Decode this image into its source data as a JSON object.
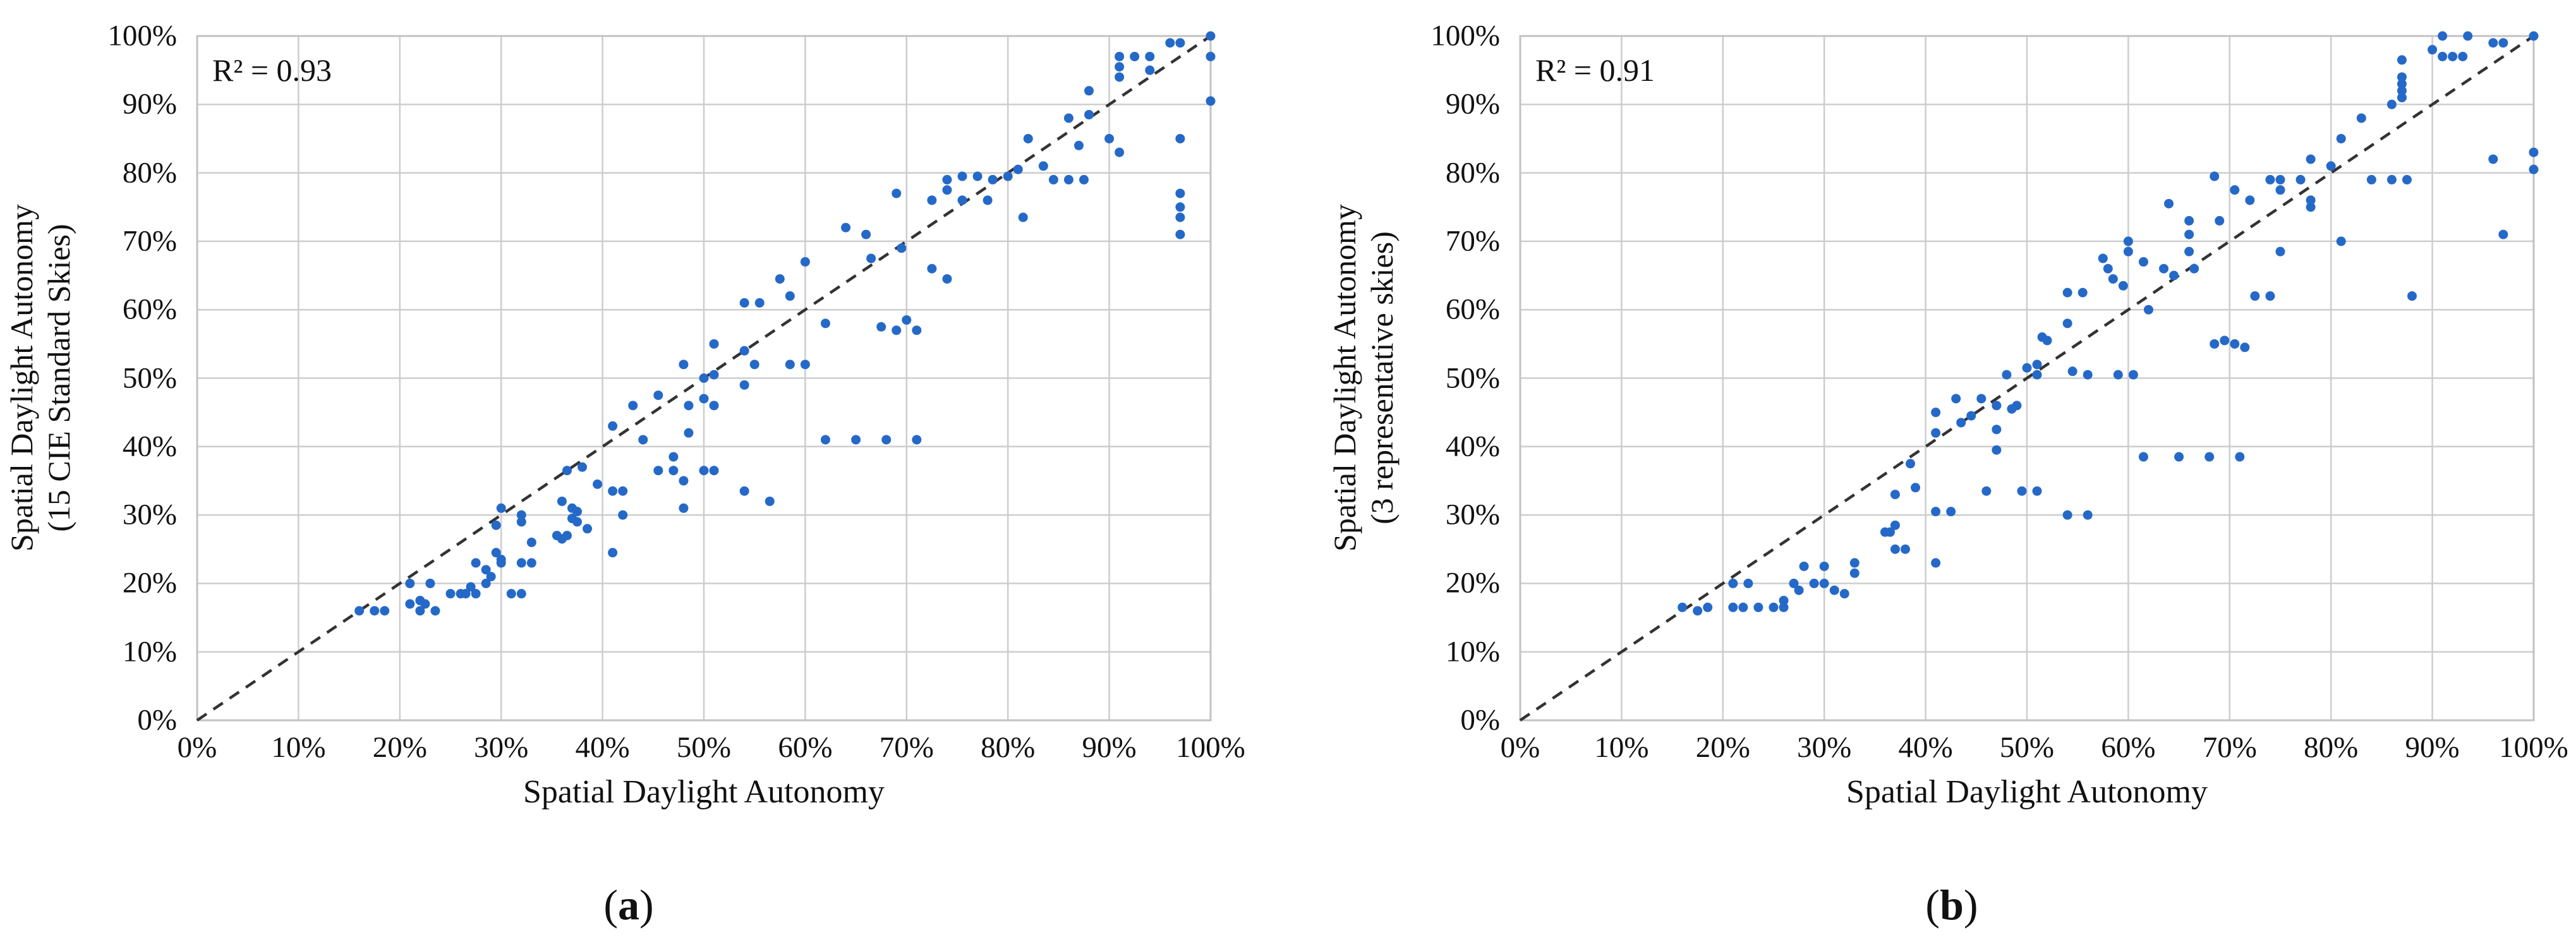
{
  "figure": {
    "captions": [
      "a",
      "b"
    ]
  },
  "colors": {
    "point": "#2569C8",
    "grid": "#CDCDCD",
    "border": "#C2C2C2",
    "diagonal": "#333333",
    "text": "#111111"
  },
  "chart_data": [
    {
      "type": "scatter",
      "r2_label": "R² = 0.93",
      "xlabel": "Spatial Daylight Autonomy",
      "ylabel_line1": "Spatial Daylight Autonomy",
      "ylabel_line2": "(15 CIE Standard Skies)",
      "xlim": [
        0,
        100
      ],
      "ylim": [
        0,
        100
      ],
      "grid_step": 10,
      "grid": true,
      "reference_line": "y = x (dashed)",
      "x_ticks": [
        "0%",
        "10%",
        "20%",
        "30%",
        "40%",
        "50%",
        "60%",
        "70%",
        "80%",
        "90%",
        "100%"
      ],
      "y_ticks": [
        "0%",
        "10%",
        "20%",
        "30%",
        "40%",
        "50%",
        "60%",
        "70%",
        "80%",
        "90%",
        "100%"
      ],
      "points": [
        [
          16,
          16
        ],
        [
          17.5,
          16
        ],
        [
          18.5,
          16
        ],
        [
          21,
          17
        ],
        [
          21,
          20
        ],
        [
          22,
          16
        ],
        [
          22,
          17.5
        ],
        [
          22.5,
          17
        ],
        [
          23,
          20
        ],
        [
          23.5,
          16
        ],
        [
          25,
          18.5
        ],
        [
          26,
          18.5
        ],
        [
          26.5,
          18.5
        ],
        [
          27,
          19.5
        ],
        [
          27.5,
          18.5
        ],
        [
          27.5,
          23
        ],
        [
          28.5,
          20
        ],
        [
          28.5,
          22
        ],
        [
          29,
          21
        ],
        [
          29.5,
          24.5
        ],
        [
          29.5,
          28.5
        ],
        [
          30,
          23
        ],
        [
          30,
          23.5
        ],
        [
          30,
          31
        ],
        [
          31,
          18.5
        ],
        [
          32,
          18.5
        ],
        [
          32,
          23
        ],
        [
          32,
          29
        ],
        [
          32,
          30
        ],
        [
          33,
          23
        ],
        [
          33,
          26
        ],
        [
          35.5,
          27
        ],
        [
          36,
          26.5
        ],
        [
          36,
          32
        ],
        [
          36.5,
          27
        ],
        [
          36.5,
          36.5
        ],
        [
          37,
          29.5
        ],
        [
          37,
          31
        ],
        [
          37.5,
          29
        ],
        [
          37.5,
          30.5
        ],
        [
          38,
          37
        ],
        [
          38.5,
          28
        ],
        [
          39.5,
          34.5
        ],
        [
          41,
          24.5
        ],
        [
          41,
          33.5
        ],
        [
          41,
          43
        ],
        [
          42,
          30
        ],
        [
          42,
          33.5
        ],
        [
          43,
          46
        ],
        [
          44,
          41
        ],
        [
          45.5,
          36.5
        ],
        [
          45.5,
          47.5
        ],
        [
          47,
          36.5
        ],
        [
          47,
          38.5
        ],
        [
          48,
          31
        ],
        [
          48,
          35
        ],
        [
          48,
          52
        ],
        [
          48.5,
          42
        ],
        [
          48.5,
          46
        ],
        [
          50,
          36.5
        ],
        [
          51,
          36.5
        ],
        [
          54,
          33.5
        ],
        [
          56.5,
          32
        ],
        [
          62,
          41
        ],
        [
          65,
          41
        ],
        [
          68,
          41
        ],
        [
          71,
          41
        ],
        [
          50,
          47
        ],
        [
          50,
          50
        ],
        [
          51,
          46
        ],
        [
          51,
          50.5
        ],
        [
          51,
          55
        ],
        [
          54,
          49
        ],
        [
          54,
          54
        ],
        [
          55,
          52
        ],
        [
          58.5,
          52
        ],
        [
          60,
          52
        ],
        [
          54,
          61
        ],
        [
          55.5,
          61
        ],
        [
          57.5,
          64.5
        ],
        [
          58.5,
          62
        ],
        [
          60,
          67
        ],
        [
          62,
          58
        ],
        [
          64,
          72
        ],
        [
          66,
          71
        ],
        [
          66.5,
          67.5
        ],
        [
          67.5,
          57.5
        ],
        [
          69,
          57
        ],
        [
          69,
          77
        ],
        [
          69.5,
          69
        ],
        [
          70,
          58.5
        ],
        [
          71,
          57
        ],
        [
          72.5,
          66
        ],
        [
          72.5,
          76
        ],
        [
          74,
          64.5
        ],
        [
          74,
          77.5
        ],
        [
          74,
          79
        ],
        [
          75.5,
          76
        ],
        [
          75.5,
          79.5
        ],
        [
          77,
          79.5
        ],
        [
          78,
          76
        ],
        [
          78.5,
          79
        ],
        [
          80,
          79.5
        ],
        [
          81,
          80.5
        ],
        [
          81.5,
          73.5
        ],
        [
          82,
          85
        ],
        [
          83.5,
          81
        ],
        [
          84.5,
          79
        ],
        [
          86,
          79
        ],
        [
          86,
          88
        ],
        [
          87,
          84
        ],
        [
          87.5,
          79
        ],
        [
          88,
          88.5
        ],
        [
          88,
          92
        ],
        [
          90,
          85
        ],
        [
          91,
          83
        ],
        [
          91,
          94
        ],
        [
          91,
          95.5
        ],
        [
          91,
          97
        ],
        [
          92.5,
          97
        ],
        [
          94,
          95
        ],
        [
          94,
          97
        ],
        [
          96,
          99
        ],
        [
          97,
          99
        ],
        [
          97,
          71
        ],
        [
          97,
          73.5
        ],
        [
          97,
          75
        ],
        [
          97,
          77
        ],
        [
          97,
          85
        ],
        [
          100,
          90.5
        ],
        [
          100,
          97
        ],
        [
          100,
          100
        ]
      ]
    },
    {
      "type": "scatter",
      "r2_label": "R² = 0.91",
      "xlabel": "Spatial Daylight Autonomy",
      "ylabel_line1": "Spatial Daylight Autonomy",
      "ylabel_line2": "(3 representative skies)",
      "xlim": [
        0,
        100
      ],
      "ylim": [
        0,
        100
      ],
      "grid_step": 10,
      "grid": true,
      "reference_line": "y = x (dashed)",
      "x_ticks": [
        "0%",
        "10%",
        "20%",
        "30%",
        "40%",
        "50%",
        "60%",
        "70%",
        "80%",
        "90%",
        "100%"
      ],
      "y_ticks": [
        "0%",
        "10%",
        "20%",
        "30%",
        "40%",
        "50%",
        "60%",
        "70%",
        "80%",
        "90%",
        "100%"
      ],
      "points": [
        [
          16,
          16.5
        ],
        [
          17.5,
          16
        ],
        [
          18.5,
          16.5
        ],
        [
          21,
          16.5
        ],
        [
          21,
          20
        ],
        [
          22,
          16.5
        ],
        [
          22.5,
          20
        ],
        [
          23.5,
          16.5
        ],
        [
          25,
          16.5
        ],
        [
          26,
          16.5
        ],
        [
          26,
          17.5
        ],
        [
          27,
          20
        ],
        [
          27.5,
          19
        ],
        [
          28,
          22.5
        ],
        [
          29,
          20
        ],
        [
          30,
          20
        ],
        [
          30,
          22.5
        ],
        [
          31,
          19
        ],
        [
          32,
          18.5
        ],
        [
          33,
          21.5
        ],
        [
          33,
          23
        ],
        [
          36,
          27.5
        ],
        [
          36.5,
          27.5
        ],
        [
          37,
          25
        ],
        [
          37,
          28.5
        ],
        [
          37,
          33
        ],
        [
          38,
          25
        ],
        [
          38.5,
          37.5
        ],
        [
          39,
          34
        ],
        [
          41,
          23
        ],
        [
          41,
          30.5
        ],
        [
          42.5,
          30.5
        ],
        [
          46,
          33.5
        ],
        [
          49.5,
          33.5
        ],
        [
          51,
          33.5
        ],
        [
          54,
          30
        ],
        [
          56,
          30
        ],
        [
          61.5,
          38.5
        ],
        [
          65,
          38.5
        ],
        [
          68,
          38.5
        ],
        [
          71,
          38.5
        ],
        [
          41,
          42
        ],
        [
          41,
          45
        ],
        [
          43,
          47
        ],
        [
          43.5,
          43.5
        ],
        [
          44.5,
          44.5
        ],
        [
          45.5,
          47
        ],
        [
          47,
          39.5
        ],
        [
          47,
          42.5
        ],
        [
          47,
          46
        ],
        [
          48,
          50.5
        ],
        [
          48.5,
          45.5
        ],
        [
          49,
          46
        ],
        [
          50,
          51.5
        ],
        [
          51,
          50.5
        ],
        [
          51,
          52
        ],
        [
          51.5,
          56
        ],
        [
          52,
          55.5
        ],
        [
          54,
          58
        ],
        [
          54.5,
          51
        ],
        [
          56,
          50.5
        ],
        [
          59,
          50.5
        ],
        [
          60.5,
          50.5
        ],
        [
          54,
          62.5
        ],
        [
          55.5,
          62.5
        ],
        [
          57.5,
          67.5
        ],
        [
          58,
          66
        ],
        [
          58.5,
          64.5
        ],
        [
          59.5,
          63.5
        ],
        [
          60,
          70
        ],
        [
          60,
          68.5
        ],
        [
          61.5,
          67
        ],
        [
          62,
          60
        ],
        [
          63.5,
          66
        ],
        [
          64.5,
          65
        ],
        [
          66,
          68.5
        ],
        [
          66.5,
          66
        ],
        [
          66,
          71
        ],
        [
          66,
          73
        ],
        [
          69,
          73
        ],
        [
          64,
          75.5
        ],
        [
          68.5,
          55
        ],
        [
          69.5,
          55.5
        ],
        [
          70.5,
          55
        ],
        [
          71.5,
          54.5
        ],
        [
          72.5,
          62
        ],
        [
          74,
          62
        ],
        [
          88,
          62
        ],
        [
          68.5,
          79.5
        ],
        [
          70.5,
          77.5
        ],
        [
          72,
          76
        ],
        [
          74,
          79
        ],
        [
          75,
          79
        ],
        [
          75,
          77.5
        ],
        [
          75,
          68.5
        ],
        [
          77,
          79
        ],
        [
          78,
          75
        ],
        [
          78,
          76
        ],
        [
          78,
          82
        ],
        [
          80,
          81
        ],
        [
          81,
          70
        ],
        [
          81,
          85
        ],
        [
          83,
          88
        ],
        [
          84,
          79
        ],
        [
          86,
          79
        ],
        [
          86,
          90
        ],
        [
          87.5,
          79
        ],
        [
          87,
          91
        ],
        [
          87,
          92
        ],
        [
          87,
          93
        ],
        [
          87,
          94
        ],
        [
          87,
          96.5
        ],
        [
          90,
          98
        ],
        [
          91,
          97
        ],
        [
          91,
          100
        ],
        [
          92,
          97
        ],
        [
          93,
          97
        ],
        [
          93.5,
          100
        ],
        [
          96,
          99
        ],
        [
          97,
          99
        ],
        [
          100,
          100
        ],
        [
          96,
          82
        ],
        [
          100,
          83
        ],
        [
          100,
          80.5
        ],
        [
          97,
          71
        ]
      ]
    }
  ]
}
